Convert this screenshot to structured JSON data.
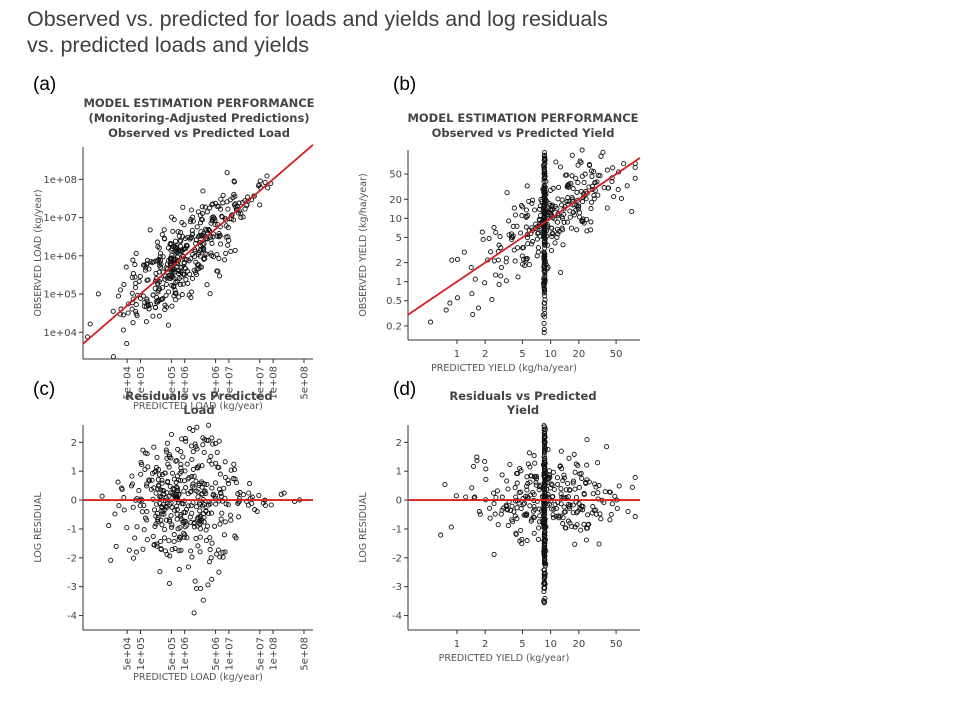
{
  "slide": {
    "title_line1": "Observed vs. predicted for loads and yields and log residuals",
    "title_line2": "vs. predicted loads and yields"
  },
  "chart_data": [
    {
      "id": "a",
      "panel_label": "(a)",
      "type": "scatter",
      "title": [
        "MODEL ESTIMATION PERFORMANCE",
        "(Monitoring-Adjusted Predictions)",
        "Observed vs    Predicted Load"
      ],
      "xlabel": "PREDICTED LOAD (kg/year)",
      "ylabel": "OBSERVED LOAD (kg/year)",
      "log_x": true,
      "log_y": true,
      "xlim": [
        5000,
        800000000
      ],
      "ylim": [
        2000,
        700000000
      ],
      "x_ticks": [
        50000,
        100000,
        500000,
        1000000,
        5000000,
        10000000,
        50000000,
        100000000,
        500000000
      ],
      "x_tick_labels": [
        "5e+04",
        "1e+05",
        "5e+05",
        "1e+06",
        "5e+06",
        "1e+07",
        "5e+07",
        "1e+08",
        "5e+08"
      ],
      "y_ticks": [
        10000,
        100000,
        1000000,
        10000000,
        100000000
      ],
      "y_tick_labels": [
        "1e+04",
        "1e+05",
        "1e+06",
        "1e+07",
        "1e+08"
      ],
      "reference_line": "y = x",
      "line_color": "#d62020",
      "n_points": 420,
      "grid": false
    },
    {
      "id": "b",
      "panel_label": "(b)",
      "type": "scatter",
      "title": [
        "MODEL ESTIMATION PERFORMANCE",
        "Observed vs Predicted Yield"
      ],
      "xlabel": "PREDICTED YIELD (kg/ha/year)",
      "ylabel": "OBSERVED YIELD (kg/ha/year)",
      "log_x": true,
      "log_y": true,
      "xlim": [
        0.3,
        90
      ],
      "ylim": [
        0.12,
        120
      ],
      "x_ticks": [
        1,
        2,
        5,
        10,
        20,
        50
      ],
      "x_tick_labels": [
        "1",
        "2",
        "5",
        "10",
        "20",
        "50"
      ],
      "y_ticks": [
        0.2,
        0.5,
        1,
        2,
        5,
        10,
        20,
        50
      ],
      "y_tick_labels": [
        "0.2",
        "0.5",
        "1",
        "2",
        "5",
        "10",
        "20",
        "50"
      ],
      "reference_line": "y = x",
      "line_color": "#d62020",
      "n_points": 480,
      "grid": false
    },
    {
      "id": "c",
      "panel_label": "(c)",
      "type": "scatter",
      "title": [
        "Residuals vs Predicted",
        "Load"
      ],
      "xlabel": "PREDICTED LOAD (kg/year)",
      "ylabel": "LOG RESIDUAL",
      "log_x": true,
      "log_y": false,
      "xlim": [
        5000,
        800000000
      ],
      "ylim": [
        -4.5,
        2.6
      ],
      "x_ticks": [
        50000,
        100000,
        500000,
        1000000,
        5000000,
        10000000,
        50000000,
        100000000,
        500000000
      ],
      "x_tick_labels": [
        "5e+04",
        "1e+05",
        "5e+05",
        "1e+06",
        "5e+06",
        "1e+07",
        "5e+07",
        "1e+08",
        "5e+08"
      ],
      "y_ticks": [
        -4,
        -3,
        -2,
        -1,
        0,
        1,
        2
      ],
      "y_tick_labels": [
        "-4",
        "-3",
        "-2",
        "-1",
        "0",
        "1",
        "2"
      ],
      "reference_line": "y = 0",
      "line_color": "#d62020",
      "n_points": 420,
      "grid": false
    },
    {
      "id": "d",
      "panel_label": "(d)",
      "type": "scatter",
      "title": [
        "Residuals vs Predicted",
        "Yield"
      ],
      "xlabel": "PREDICTED YIELD (kg/year)",
      "ylabel": "LOG RESIDUAL",
      "log_x": true,
      "log_y": false,
      "xlim": [
        0.3,
        90
      ],
      "ylim": [
        -4.5,
        2.6
      ],
      "x_ticks": [
        1,
        2,
        5,
        10,
        20,
        50
      ],
      "x_tick_labels": [
        "1",
        "2",
        "5",
        "10",
        "20",
        "50"
      ],
      "y_ticks": [
        -4,
        -3,
        -2,
        -1,
        0,
        1,
        2
      ],
      "y_tick_labels": [
        "-4",
        "-3",
        "-2",
        "-1",
        "0",
        "1",
        "2"
      ],
      "reference_line": "y = 0",
      "line_color": "#d62020",
      "n_points": 480,
      "grid": false
    }
  ]
}
